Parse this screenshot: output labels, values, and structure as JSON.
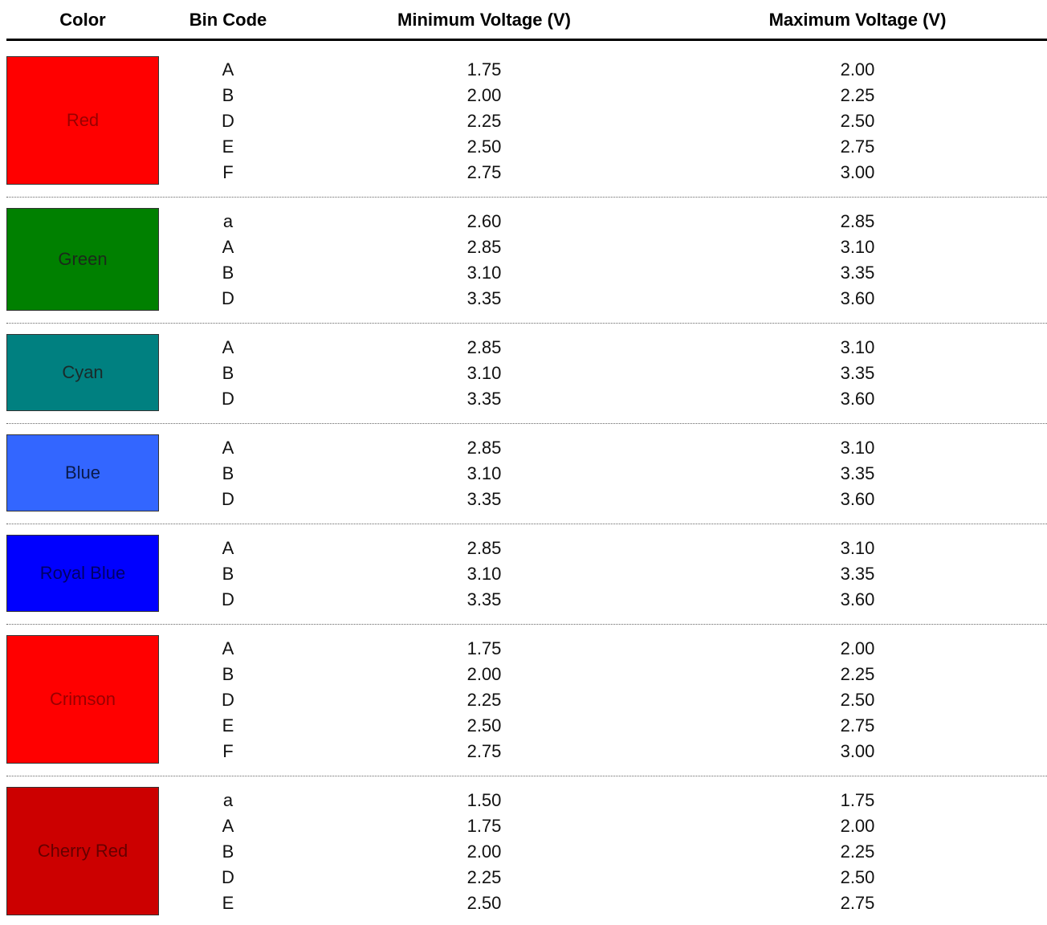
{
  "header": [
    "Color",
    "Bin Code",
    "Minimum Voltage (V)",
    "Maximum Voltage (V)"
  ],
  "groups": [
    {
      "color": "Red",
      "swatch": "#ff0000",
      "text_color": "#990000",
      "rows": [
        [
          "A",
          "1.75",
          "2.00"
        ],
        [
          "B",
          "2.00",
          "2.25"
        ],
        [
          "D",
          "2.25",
          "2.50"
        ],
        [
          "E",
          "2.50",
          "2.75"
        ],
        [
          "F",
          "2.75",
          "3.00"
        ]
      ]
    },
    {
      "color": "Green",
      "swatch": "#008000",
      "text_color": "#1a2a1a",
      "rows": [
        [
          "a",
          "2.60",
          "2.85"
        ],
        [
          "A",
          "2.85",
          "3.10"
        ],
        [
          "B",
          "3.10",
          "3.35"
        ],
        [
          "D",
          "3.35",
          "3.60"
        ]
      ]
    },
    {
      "color": "Cyan",
      "swatch": "#008080",
      "text_color": "#1a2a2a",
      "rows": [
        [
          "A",
          "2.85",
          "3.10"
        ],
        [
          "B",
          "3.10",
          "3.35"
        ],
        [
          "D",
          "3.35",
          "3.60"
        ]
      ]
    },
    {
      "color": "Blue",
      "swatch": "#3366ff",
      "text_color": "#0a1a4a",
      "rows": [
        [
          "A",
          "2.85",
          "3.10"
        ],
        [
          "B",
          "3.10",
          "3.35"
        ],
        [
          "D",
          "3.35",
          "3.60"
        ]
      ]
    },
    {
      "color": "Royal Blue",
      "swatch": "#0000ff",
      "text_color": "#000066",
      "rows": [
        [
          "A",
          "2.85",
          "3.10"
        ],
        [
          "B",
          "3.10",
          "3.35"
        ],
        [
          "D",
          "3.35",
          "3.60"
        ]
      ]
    },
    {
      "color": "Crimson",
      "swatch": "#ff0000",
      "text_color": "#990000",
      "rows": [
        [
          "A",
          "1.75",
          "2.00"
        ],
        [
          "B",
          "2.00",
          "2.25"
        ],
        [
          "D",
          "2.25",
          "2.50"
        ],
        [
          "E",
          "2.50",
          "2.75"
        ],
        [
          "F",
          "2.75",
          "3.00"
        ]
      ]
    },
    {
      "color": "Cherry Red",
      "swatch": "#cc0000",
      "text_color": "#660000",
      "rows": [
        [
          "a",
          "1.50",
          "1.75"
        ],
        [
          "A",
          "1.75",
          "2.00"
        ],
        [
          "B",
          "2.00",
          "2.25"
        ],
        [
          "D",
          "2.25",
          "2.50"
        ],
        [
          "E",
          "2.50",
          "2.75"
        ]
      ]
    }
  ]
}
